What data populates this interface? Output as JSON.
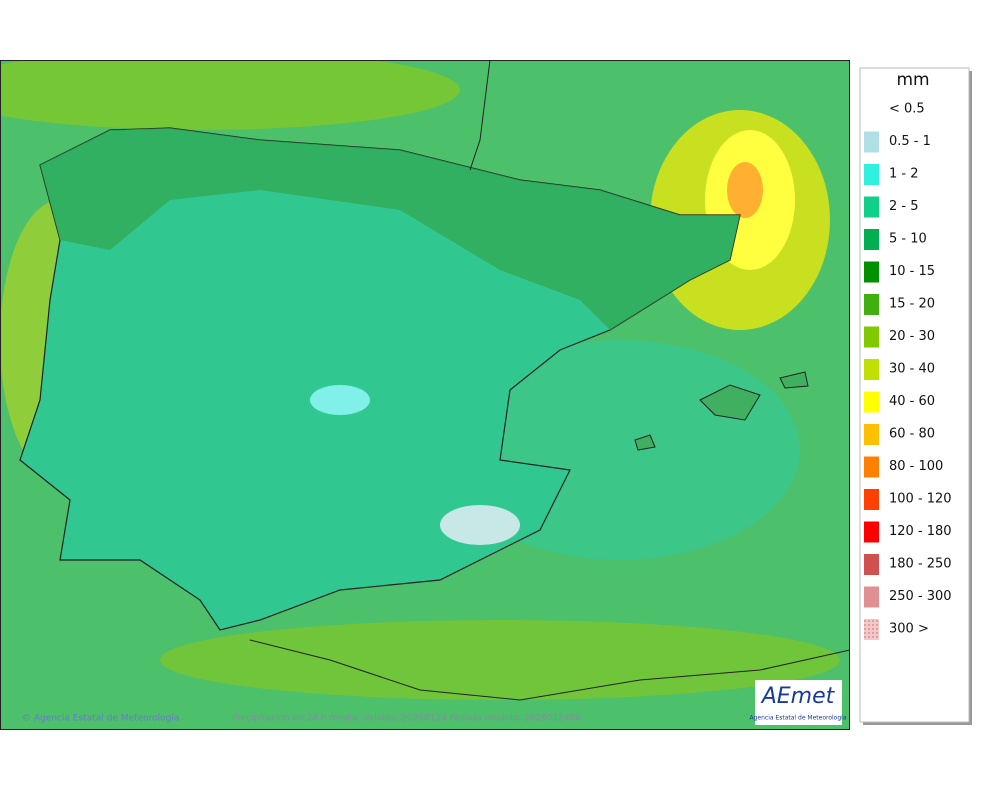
{
  "legend": {
    "unit": "mm",
    "items": [
      {
        "label": "< 0.5",
        "color": null
      },
      {
        "label": "0.5 - 1",
        "color": "#b0e0e6"
      },
      {
        "label": "1 - 2",
        "color": "#30f0e0"
      },
      {
        "label": "2 - 5",
        "color": "#10d088"
      },
      {
        "label": "5 - 10",
        "color": "#00b050"
      },
      {
        "label": "10 - 15",
        "color": "#009000"
      },
      {
        "label": "15 - 20",
        "color": "#40b010"
      },
      {
        "label": "20 - 30",
        "color": "#80c800"
      },
      {
        "label": "30 - 40",
        "color": "#c0e000"
      },
      {
        "label": "40 - 60",
        "color": "#ffff00"
      },
      {
        "label": "60 - 80",
        "color": "#ffc000"
      },
      {
        "label": "80 - 100",
        "color": "#ff8000"
      },
      {
        "label": "100 - 120",
        "color": "#ff4000"
      },
      {
        "label": "120 - 180",
        "color": "#ff0000"
      },
      {
        "label": "180 - 250",
        "color": "#d05050"
      },
      {
        "label": "250 - 300",
        "color": "#e09090"
      },
      {
        "label": "300 >",
        "color": "#f4c8c8"
      }
    ]
  },
  "footer": {
    "credit": "© Agencia Estatal de Meteorología",
    "caption": "Precipitación en 24 h media. Validez: 20260124 Pasada modelo: 2026012400"
  },
  "logo": {
    "name": "AEmet",
    "subtitle": "Agencia Estatal de Meteorología"
  }
}
